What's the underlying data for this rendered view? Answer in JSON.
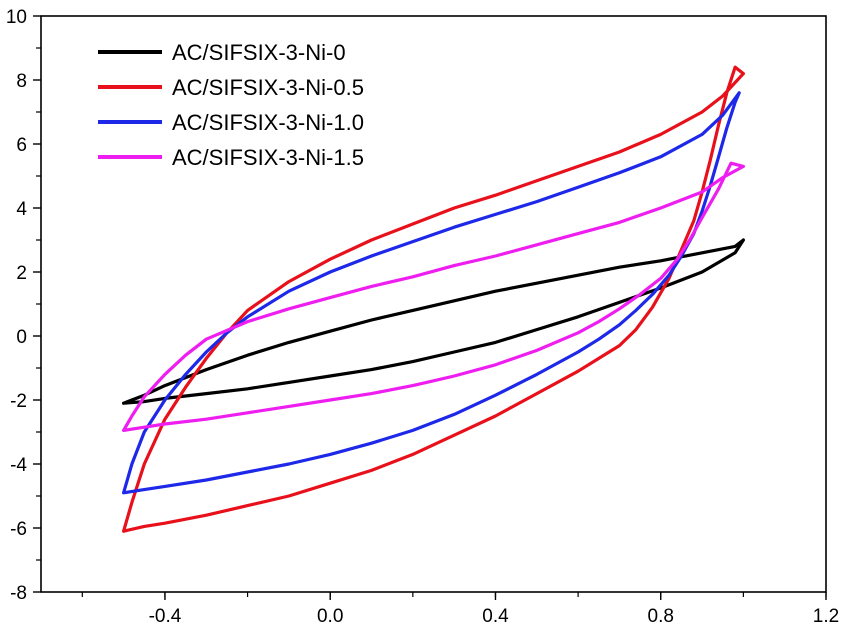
{
  "chart_data": {
    "type": "line",
    "title": "",
    "xlabel": "",
    "ylabel": "",
    "xlim": [
      -0.7,
      1.2
    ],
    "ylim": [
      -8,
      10
    ],
    "xticks": [
      -0.4,
      0.0,
      0.4,
      0.8,
      1.2
    ],
    "xtick_labels": [
      "-0.4",
      "0.0",
      "0.4",
      "0.8",
      "1.2"
    ],
    "yticks": [
      -8,
      -6,
      -4,
      -2,
      0,
      2,
      4,
      6,
      8,
      10
    ],
    "ytick_labels": [
      "-8",
      "-6",
      "-4",
      "-2",
      "0",
      "2",
      "4",
      "6",
      "8",
      "10"
    ],
    "grid": false,
    "legend_position": "top-left",
    "series": [
      {
        "name": "AC/SIFSIX-3-Ni-0",
        "color": "#000000",
        "x": [
          -0.5,
          -0.45,
          -0.4,
          -0.3,
          -0.2,
          -0.1,
          0.0,
          0.1,
          0.2,
          0.3,
          0.4,
          0.5,
          0.6,
          0.7,
          0.8,
          0.9,
          0.98,
          1.0,
          0.98,
          0.9,
          0.8,
          0.7,
          0.6,
          0.5,
          0.4,
          0.3,
          0.2,
          0.1,
          0.0,
          -0.1,
          -0.2,
          -0.3,
          -0.4,
          -0.45,
          -0.5
        ],
        "y": [
          -2.1,
          -1.85,
          -1.55,
          -1.05,
          -0.6,
          -0.2,
          0.15,
          0.5,
          0.8,
          1.1,
          1.4,
          1.65,
          1.9,
          2.15,
          2.35,
          2.6,
          2.8,
          3.0,
          2.6,
          2.0,
          1.5,
          1.05,
          0.6,
          0.2,
          -0.2,
          -0.5,
          -0.8,
          -1.05,
          -1.25,
          -1.45,
          -1.65,
          -1.8,
          -1.95,
          -2.05,
          -2.1
        ]
      },
      {
        "name": "AC/SIFSIX-3-Ni-0.5",
        "color": "#e8101a",
        "x": [
          -0.5,
          -0.48,
          -0.45,
          -0.4,
          -0.35,
          -0.3,
          -0.25,
          -0.2,
          -0.1,
          0.0,
          0.1,
          0.2,
          0.3,
          0.4,
          0.5,
          0.6,
          0.7,
          0.8,
          0.9,
          0.95,
          1.0,
          0.98,
          0.96,
          0.94,
          0.92,
          0.9,
          0.88,
          0.85,
          0.82,
          0.78,
          0.74,
          0.7,
          0.65,
          0.6,
          0.5,
          0.4,
          0.3,
          0.2,
          0.1,
          0.0,
          -0.1,
          -0.2,
          -0.3,
          -0.4,
          -0.45,
          -0.5
        ],
        "y": [
          -6.1,
          -5.2,
          -4.0,
          -2.6,
          -1.6,
          -0.7,
          0.1,
          0.8,
          1.7,
          2.4,
          3.0,
          3.5,
          4.0,
          4.4,
          4.85,
          5.3,
          5.75,
          6.3,
          7.0,
          7.5,
          8.2,
          8.4,
          7.6,
          6.6,
          5.5,
          4.5,
          3.6,
          2.7,
          1.8,
          0.9,
          0.2,
          -0.3,
          -0.7,
          -1.1,
          -1.8,
          -2.5,
          -3.1,
          -3.7,
          -4.2,
          -4.6,
          -5.0,
          -5.3,
          -5.6,
          -5.85,
          -5.95,
          -6.1
        ]
      },
      {
        "name": "AC/SIFSIX-3-Ni-1.0",
        "color": "#1d28e8",
        "x": [
          -0.5,
          -0.48,
          -0.45,
          -0.4,
          -0.35,
          -0.3,
          -0.25,
          -0.2,
          -0.1,
          0.0,
          0.1,
          0.2,
          0.3,
          0.4,
          0.5,
          0.6,
          0.7,
          0.8,
          0.9,
          0.95,
          0.99,
          0.98,
          0.96,
          0.94,
          0.92,
          0.9,
          0.88,
          0.85,
          0.82,
          0.78,
          0.74,
          0.7,
          0.65,
          0.6,
          0.5,
          0.4,
          0.3,
          0.2,
          0.1,
          0.0,
          -0.1,
          -0.2,
          -0.3,
          -0.4,
          -0.45,
          -0.5
        ],
        "y": [
          -4.9,
          -4.0,
          -3.0,
          -2.0,
          -1.2,
          -0.5,
          0.1,
          0.6,
          1.4,
          2.0,
          2.5,
          2.95,
          3.4,
          3.8,
          4.2,
          4.65,
          5.1,
          5.6,
          6.3,
          6.9,
          7.6,
          7.3,
          6.5,
          5.6,
          4.7,
          3.9,
          3.2,
          2.5,
          1.9,
          1.3,
          0.8,
          0.35,
          -0.1,
          -0.5,
          -1.2,
          -1.85,
          -2.45,
          -2.95,
          -3.35,
          -3.7,
          -4.0,
          -4.25,
          -4.5,
          -4.7,
          -4.8,
          -4.9
        ]
      },
      {
        "name": "AC/SIFSIX-3-Ni-1.5",
        "color": "#ee1ef0",
        "x": [
          -0.5,
          -0.48,
          -0.45,
          -0.4,
          -0.35,
          -0.3,
          -0.2,
          -0.1,
          0.0,
          0.1,
          0.2,
          0.3,
          0.4,
          0.5,
          0.6,
          0.7,
          0.8,
          0.9,
          0.95,
          1.0,
          0.97,
          0.94,
          0.9,
          0.87,
          0.84,
          0.8,
          0.75,
          0.7,
          0.65,
          0.6,
          0.5,
          0.4,
          0.3,
          0.2,
          0.1,
          0.0,
          -0.1,
          -0.2,
          -0.3,
          -0.4,
          -0.45,
          -0.5
        ],
        "y": [
          -2.95,
          -2.5,
          -1.9,
          -1.2,
          -0.6,
          -0.1,
          0.45,
          0.85,
          1.2,
          1.55,
          1.85,
          2.2,
          2.5,
          2.85,
          3.2,
          3.55,
          4.0,
          4.5,
          4.95,
          5.3,
          5.4,
          4.6,
          3.7,
          3.0,
          2.4,
          1.8,
          1.3,
          0.85,
          0.45,
          0.1,
          -0.45,
          -0.9,
          -1.25,
          -1.55,
          -1.8,
          -2.0,
          -2.2,
          -2.4,
          -2.6,
          -2.75,
          -2.85,
          -2.95
        ]
      }
    ]
  }
}
